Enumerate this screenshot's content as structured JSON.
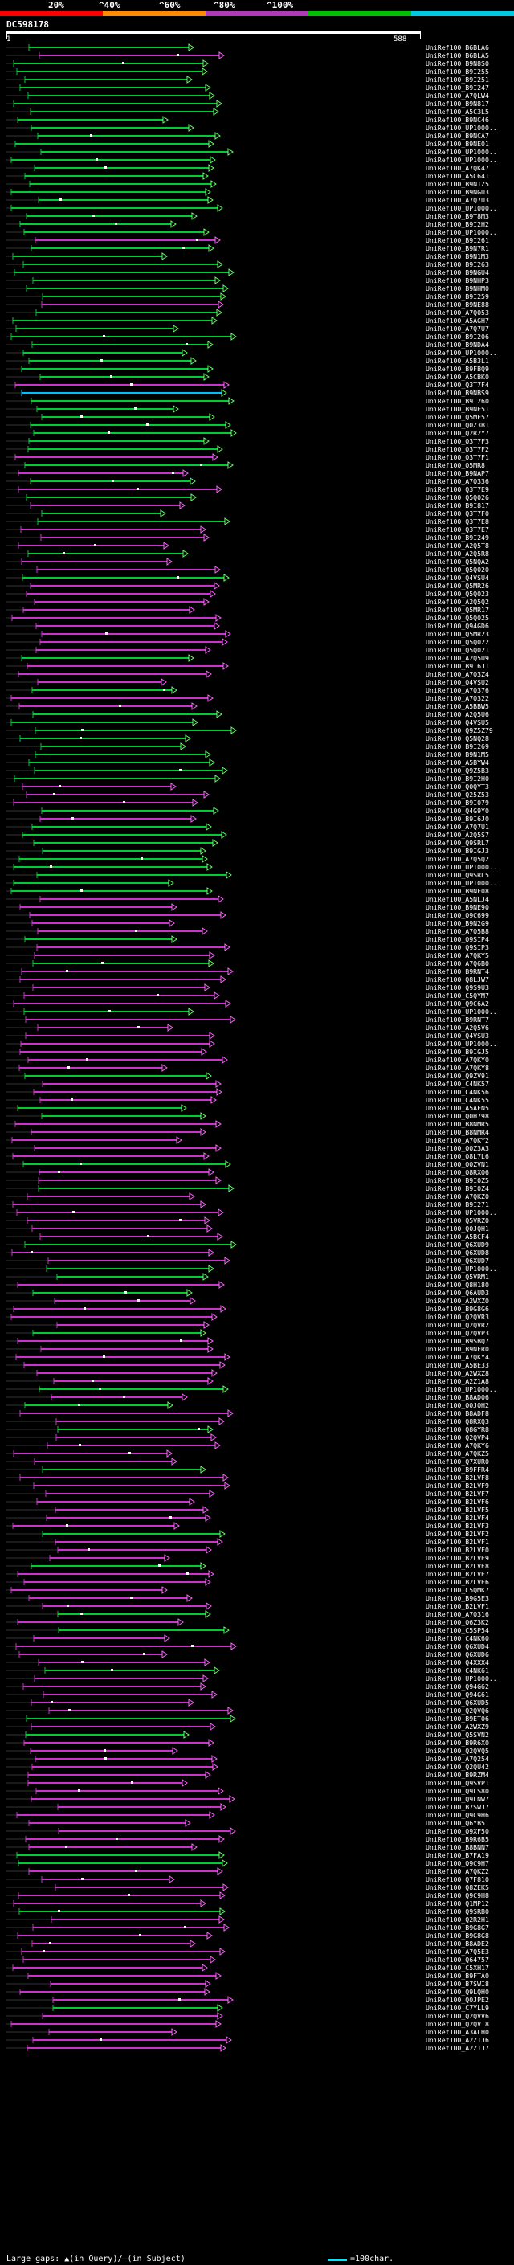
{
  "scale": {
    "labels": [
      "20%",
      "^40%",
      "^60%",
      "^80%",
      "^100%"
    ],
    "colors": [
      "#ff0000",
      "#ff8c00",
      "#b03bb8",
      "#00c000",
      "#00c8e0"
    ]
  },
  "query": {
    "id": "DC598178",
    "start": "1",
    "end": "588"
  },
  "colors": {
    "green": "#00cc33",
    "magenta": "#cc33cc",
    "cyan": "#00bfff",
    "arrow_green": "#66ff66",
    "arrow_magenta": "#ff66ff"
  },
  "hits": [
    "UniRef100_B6BLA6",
    "UniRef100_B6BLA5",
    "UniRef100_B9N8S0",
    "UniRef100_B9I255",
    "UniRef100_B9I251",
    "UniRef100_B9I247",
    "UniRef100_A7QLW4",
    "UniRef100_B9N817",
    "UniRef100_A5C3L5",
    "UniRef100_B9NC46",
    "UniRef100_UP1000..",
    "UniRef100_B9NCA7",
    "UniRef100_B9NE01",
    "UniRef100_UP1000..",
    "UniRef100_UP1000..",
    "UniRef100_A7QK47",
    "UniRef100_A5C641",
    "UniRef100_B9N1Z5",
    "UniRef100_B9NGU3",
    "UniRef100_A7Q7U3",
    "UniRef100_UP1000..",
    "UniRef100_B9T8M3",
    "UniRef100_B9I2H2",
    "UniRef100_UP1000..",
    "UniRef100_B9I261",
    "UniRef100_B9N7R1",
    "UniRef100_B9N1M3",
    "UniRef100_B9I263",
    "UniRef100_B9NGU4",
    "UniRef100_B9NHP3",
    "UniRef100_B9NHM0",
    "UniRef100_B9I259",
    "UniRef100_B9NE88",
    "UniRef100_A7Q053",
    "UniRef100_A5AGH7",
    "UniRef100_A7Q7U7",
    "UniRef100_B9I206",
    "UniRef100_B9NDA4",
    "UniRef100_UP1000..",
    "UniRef100_A5B3L1",
    "UniRef100_B9FBQ9",
    "UniRef100_A5CBK0",
    "UniRef100_Q3T7F4",
    "UniRef100_B9NBS9",
    "UniRef100_B9I260",
    "UniRef100_B9NE51",
    "UniRef100_Q5MF57",
    "UniRef100_Q0Z3B1",
    "UniRef100_Q2R2Y7",
    "UniRef100_Q3T7F3",
    "UniRef100_Q3T7F2",
    "UniRef100_Q3T7F1",
    "UniRef100_Q5MR8",
    "UniRef100_B9NAP7",
    "UniRef100_A7Q336",
    "UniRef100_Q3T7E9",
    "UniRef100_Q5Q026",
    "UniRef100_B9I817",
    "UniRef100_Q3T7F0",
    "UniRef100_Q3T7E8",
    "UniRef100_Q3T7E7",
    "UniRef100_B9I249",
    "UniRef100_A2Q5T8",
    "UniRef100_A2Q5R8",
    "UniRef100_Q5NQA2",
    "UniRef100_Q5Q020",
    "UniRef100_Q4VSU4",
    "UniRef100_Q5MR26",
    "UniRef100_Q5Q023",
    "UniRef100_A2Q5Q2",
    "UniRef100_Q5MR17",
    "UniRef100_Q5Q025",
    "UniRef100_Q94GD6",
    "UniRef100_Q5MR23",
    "UniRef100_Q5Q022",
    "UniRef100_Q5Q021",
    "UniRef100_A2Q5U9",
    "UniRef100_B9I6J1",
    "UniRef100_A7Q3Z4",
    "UniRef100_Q4VSU2",
    "UniRef100_A7Q376",
    "UniRef100_A7Q322",
    "UniRef100_A5BBW5",
    "UniRef100_A2Q5U6",
    "UniRef100_Q4VSU5",
    "UniRef100_Q9Z5Z79",
    "UniRef100_Q5NQ28",
    "UniRef100_B9I269",
    "UniRef100_B9N1M5",
    "UniRef100_A5BYW4",
    "UniRef100_Q9Z5B3",
    "UniRef100_B9I2H0",
    "UniRef100_Q0QYT3",
    "UniRef100_Q25Z53",
    "UniRef100_B9I079",
    "UniRef100_Q4G9Y0",
    "UniRef100_B9I6J0",
    "UniRef100_A7Q7U1",
    "UniRef100_A2Q5S7",
    "UniRef100_Q9SRL7",
    "UniRef100_B9IGJ3",
    "UniRef100_A7Q5Q2",
    "UniRef100_UP1000..",
    "UniRef100_Q9SRL5",
    "UniRef100_UP1000..",
    "UniRef100_B9NF08",
    "UniRef100_A5NLJ4",
    "UniRef100_B9NE90",
    "UniRef100_Q9C699",
    "UniRef100_B9N2G9",
    "UniRef100_A7Q5B8",
    "UniRef100_Q9SIP4",
    "UniRef100_Q9SIP3",
    "UniRef100_A7QKY5",
    "UniRef100_A7Q6B0",
    "UniRef100_B9RNT4",
    "UniRef100_Q8LJW7",
    "UniRef100_Q9S9U3",
    "UniRef100_C5QYM7",
    "UniRef100_Q9C6A2",
    "UniRef100_UP1000..",
    "UniRef100_B9RNT7",
    "UniRef100_A2Q5V6",
    "UniRef100_Q4VSU3",
    "UniRef100_UP1000..",
    "UniRef100_B9IGJ5",
    "UniRef100_A7QKY0",
    "UniRef100_A7QKY8",
    "UniRef100_Q9ZV91",
    "UniRef100_C4NK57",
    "UniRef100_C4NK56",
    "UniRef100_C4NK55",
    "UniRef100_A5AFN5",
    "UniRef100_Q0H798",
    "UniRef100_B8NMR5",
    "UniRef100_B8NMR4",
    "UniRef100_A7QKY2",
    "UniRef100_Q0Z3A3",
    "UniRef100_Q8L7L6",
    "UniRef100_Q0ZVN1",
    "UniRef100_Q8RXQ6",
    "UniRef100_B9I0Z5",
    "UniRef100_B9I0Z4",
    "UniRef100_A7QKZ0",
    "UniRef100_B9I271",
    "UniRef100_UP1000..",
    "UniRef100_Q5VRZ0",
    "UniRef100_Q0JQH1",
    "UniRef100_A5BCF4",
    "UniRef100_Q6XUD9",
    "UniRef100_Q6XUD8",
    "UniRef100_Q6XUD7",
    "UniRef100_UP1000..",
    "UniRef100_Q5VRM1",
    "UniRef100_Q8H180",
    "UniRef100_Q6AUD3",
    "UniRef100_A2WXZ0",
    "UniRef100_B9G8G6",
    "UniRef100_Q2QVR3",
    "UniRef100_Q2QVR2",
    "UniRef100_Q2QVP3",
    "UniRef100_B9SBQ7",
    "UniRef100_B9NFR0",
    "UniRef100_A7QKY4",
    "UniRef100_A5BE33",
    "UniRef100_A2WXZ8",
    "UniRef100_A2Z1A8",
    "UniRef100_UP1000..",
    "UniRef100_B8AD06",
    "UniRef100_Q0JQH2",
    "UniRef100_B8ADF8",
    "UniRef100_Q8RXQ3",
    "UniRef100_Q8GYR8",
    "UniRef100_Q2QVP4",
    "UniRef100_A7QKY6",
    "UniRef100_A7QKZ5",
    "UniRef100_Q7XUR0",
    "UniRef100_B9FFR4",
    "UniRef100_B2LVF8",
    "UniRef100_B2LVF9",
    "UniRef100_B2LVF7",
    "UniRef100_B2LVF6",
    "UniRef100_B2LVF5",
    "UniRef100_B2LVF4",
    "UniRef100_B2LVF3",
    "UniRef100_B2LVF2",
    "UniRef100_B2LVF1",
    "UniRef100_B2LVF0",
    "UniRef100_B2LVE9",
    "UniRef100_B2LVE8",
    "UniRef100_B2LVE7",
    "UniRef100_B2LVE6",
    "UniRef100_C5QMK7",
    "UniRef100_B9G5E3",
    "UniRef100_B2LVF1",
    "UniRef100_A7Q316",
    "UniRef100_Q6Z3K2",
    "UniRef100_C5SP54",
    "UniRef100_C4NK60",
    "UniRef100_Q6XUD4",
    "UniRef100_Q6XUD6",
    "UniRef100_Q4XXX4",
    "UniRef100_C4NK61",
    "UniRef100_UP1000..",
    "UniRef100_Q94G62",
    "UniRef100_Q94G61",
    "UniRef100_Q6XUD5",
    "UniRef100_Q2QVQ6",
    "UniRef100_B9ET06",
    "UniRef100_A2WXZ9",
    "UniRef100_Q5SVN2",
    "UniRef100_B9R6X0",
    "UniRef100_Q2QVQ5",
    "UniRef100_A7Q254",
    "UniRef100_Q2QU42",
    "UniRef100_B9RZM4",
    "UniRef100_Q9SVP1",
    "UniRef100_Q9LS80",
    "UniRef100_Q9LNW7",
    "UniRef100_B7SWJ7",
    "UniRef100_Q9C9H6",
    "UniRef100_Q6YB5",
    "UniRef100_Q9XF50",
    "UniRef100_B9R6B5",
    "UniRef100_B8BNN7",
    "UniRef100_B7FA19",
    "UniRef100_Q9C9H7",
    "UniRef100_A7QKZ2",
    "UniRef100_Q7F810",
    "UniRef100_Q8ZEK5",
    "UniRef100_Q9C9H8",
    "UniRef100_Q1MP12",
    "UniRef100_Q9SRB0",
    "UniRef100_Q2R2H1",
    "UniRef100_B9G8G7",
    "UniRef100_B9G8G8",
    "UniRef100_B8ADE2",
    "UniRef100_A7Q5E3",
    "UniRef100_Q64757",
    "UniRef100_C5XH17",
    "UniRef100_B9FTA0",
    "UniRef100_B7SWI8",
    "UniRef100_Q9LQH0",
    "UniRef100_Q0JPE2",
    "UniRef100_C7YLL9",
    "UniRef100_Q2QVV6",
    "UniRef100_Q2QVT8",
    "UniRef100_A3ALH0",
    "UniRef100_A2Z1J6",
    "UniRef100_A2Z1J7"
  ],
  "footer": {
    "text": "Large gaps: ▲(in Query)/—(in Subject)",
    "key": "=100char."
  }
}
